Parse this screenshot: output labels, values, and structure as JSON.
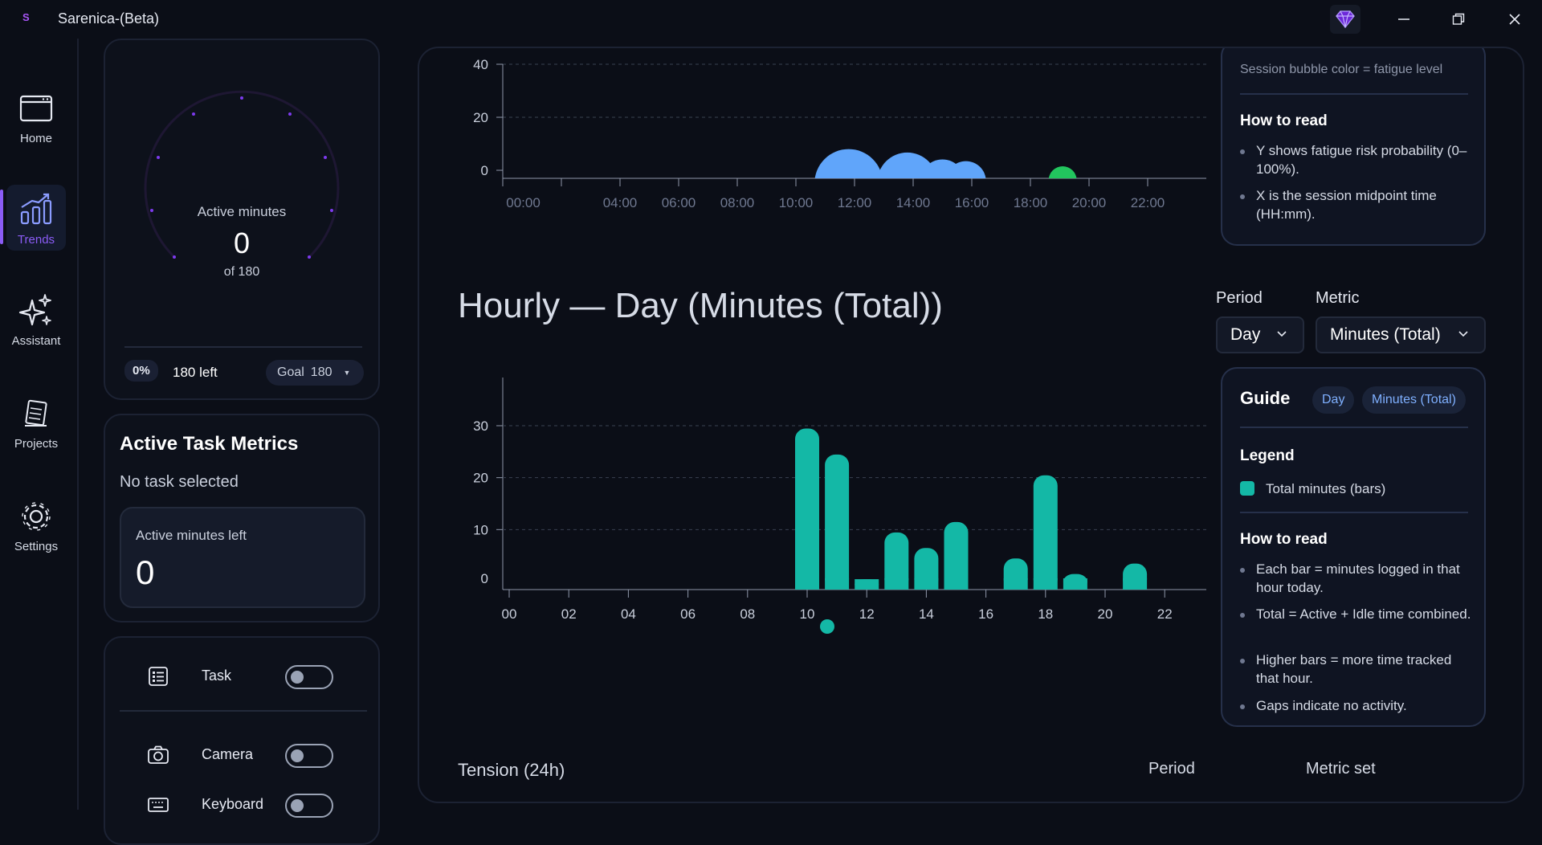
{
  "app": {
    "title": "Sarenica-(Beta)",
    "logo_letter": "S"
  },
  "nav": {
    "items": [
      {
        "label": "Home",
        "icon": "window-icon"
      },
      {
        "label": "Trends",
        "icon": "bar-chart-trend-icon",
        "active": true
      },
      {
        "label": "Assistant",
        "icon": "sparkles-icon"
      },
      {
        "label": "Projects",
        "icon": "notebook-icon"
      },
      {
        "label": "Settings",
        "icon": "gear-icon"
      }
    ]
  },
  "gauge": {
    "title": "Active minutes",
    "value": "0",
    "sub": "of 180",
    "progress_fraction": 0,
    "percent": "0%",
    "left_text": "180 left",
    "goal_label": "Goal",
    "goal_value": "180"
  },
  "task_metrics": {
    "title": "Active Task Metrics",
    "subtitle": "No task selected",
    "box_label": "Active minutes left",
    "box_value": "0"
  },
  "toggles": [
    {
      "label": "Task",
      "on": false,
      "icon": "list-icon"
    },
    {
      "label": "Camera",
      "on": false,
      "icon": "camera-icon"
    },
    {
      "label": "Keyboard",
      "on": false,
      "icon": "keyboard-icon"
    }
  ],
  "top_guide": {
    "cut_text": "Session bubble color = fatigue level",
    "how_to_read": "How to read",
    "bullets": [
      "Y shows fatigue risk probability (0–100%).",
      "X is the session midpoint time (HH:mm)."
    ]
  },
  "hourly_section": {
    "title": "Hourly — Day (Minutes (Total))",
    "period_label": "Period",
    "period_value": "Day",
    "metric_label": "Metric",
    "metric_value": "Minutes (Total)"
  },
  "hourly_guide": {
    "title": "Guide",
    "chips": [
      "Day",
      "Minutes (Total)"
    ],
    "legend_title": "Legend",
    "legend_item": "Total minutes (bars)",
    "how_to_read": "How to read",
    "bullets": [
      "Each bar = minutes logged in that hour today.",
      "Total = Active + Idle time combined.",
      "Higher bars = more time tracked that hour.",
      "Gaps indicate no activity."
    ]
  },
  "bottom_section": {
    "title": "Tension (24h)",
    "period_label": "Period",
    "metric_label": "Metric set"
  },
  "colors": {
    "accent": "#8b5cf6",
    "bar": "#14b8a6",
    "bubble": "#60a5fa",
    "bubble_low": "#22c55e"
  },
  "chart_data": [
    {
      "type": "scatter",
      "title": "",
      "y_ticks": [
        "0",
        "20",
        "40"
      ],
      "ylim": [
        0,
        40
      ],
      "x_tick_labels": [
        "00:00",
        "04:00",
        "06:00",
        "08:00",
        "10:00",
        "12:00",
        "14:00",
        "16:00",
        "18:00",
        "20:00",
        "22:00"
      ],
      "xlim": [
        0,
        24
      ],
      "grid": true,
      "points": [
        {
          "x": 11.8,
          "y": 0,
          "size": 34,
          "color": "#60a5fa"
        },
        {
          "x": 13.8,
          "y": 0,
          "size": 30,
          "color": "#60a5fa"
        },
        {
          "x": 15.0,
          "y": 0,
          "size": 22,
          "color": "#60a5fa"
        },
        {
          "x": 15.8,
          "y": 0,
          "size": 20,
          "color": "#60a5fa"
        },
        {
          "x": 19.1,
          "y": 0,
          "size": 14,
          "color": "#22c55e"
        }
      ]
    },
    {
      "type": "bar",
      "title": "Hourly — Day (Minutes (Total))",
      "categories": [
        "00",
        "01",
        "02",
        "03",
        "04",
        "05",
        "06",
        "07",
        "08",
        "09",
        "10",
        "11",
        "12",
        "13",
        "14",
        "15",
        "16",
        "17",
        "18",
        "19",
        "20",
        "21",
        "22",
        "23"
      ],
      "x_tick_labels": [
        "00",
        "02",
        "04",
        "06",
        "08",
        "10",
        "12",
        "14",
        "16",
        "18",
        "20",
        "22"
      ],
      "values": [
        0,
        0,
        0,
        0,
        0,
        0,
        0,
        0,
        0,
        0,
        31,
        26,
        2,
        11,
        8,
        13,
        0,
        6,
        22,
        3,
        0,
        5,
        0,
        0
      ],
      "y_ticks": [
        "0",
        "10",
        "20",
        "30"
      ],
      "ylim": [
        0,
        35
      ],
      "grid": true,
      "legend": [
        "Total minutes (bars)"
      ]
    }
  ]
}
